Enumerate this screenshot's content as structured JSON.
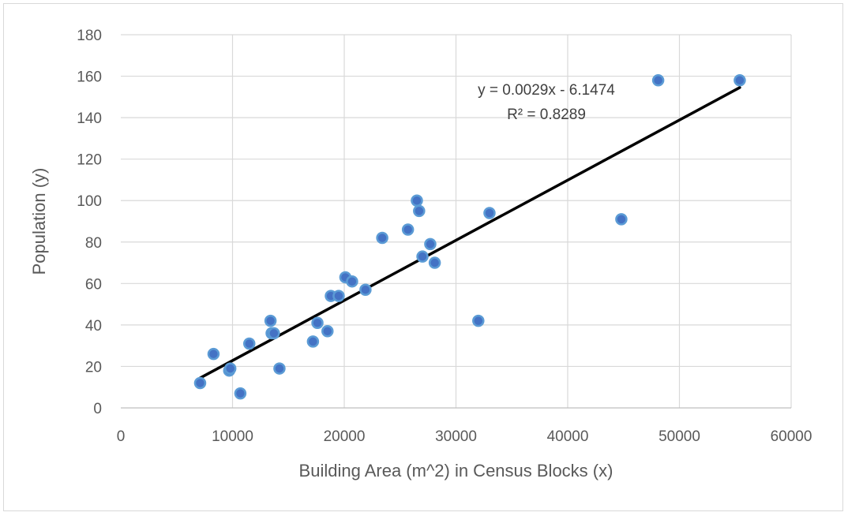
{
  "chart_data": {
    "type": "scatter",
    "title": "",
    "xlabel": "Building Area (m^2) in Census Blocks (x)",
    "ylabel": "Population (y)",
    "xlim": [
      0,
      60000
    ],
    "ylim": [
      0,
      180
    ],
    "x_ticks": [
      0,
      10000,
      20000,
      30000,
      40000,
      50000,
      60000
    ],
    "y_ticks": [
      0,
      20,
      40,
      60,
      80,
      100,
      120,
      140,
      160,
      180
    ],
    "x_tick_labels": [
      "0",
      "10000",
      "20000",
      "30000",
      "40000",
      "50000",
      "60000"
    ],
    "y_tick_labels": [
      "0",
      "20",
      "40",
      "60",
      "80",
      "100",
      "120",
      "140",
      "160",
      "180"
    ],
    "grid": true,
    "legend": "none",
    "series": [
      {
        "points": [
          {
            "x": 7100,
            "y": 12
          },
          {
            "x": 8300,
            "y": 26
          },
          {
            "x": 9700,
            "y": 18
          },
          {
            "x": 9800,
            "y": 19
          },
          {
            "x": 10700,
            "y": 7
          },
          {
            "x": 11500,
            "y": 31
          },
          {
            "x": 13400,
            "y": 42
          },
          {
            "x": 13500,
            "y": 36
          },
          {
            "x": 13700,
            "y": 36
          },
          {
            "x": 14200,
            "y": 19
          },
          {
            "x": 17200,
            "y": 32
          },
          {
            "x": 17600,
            "y": 41
          },
          {
            "x": 18500,
            "y": 37
          },
          {
            "x": 18800,
            "y": 54
          },
          {
            "x": 19500,
            "y": 54
          },
          {
            "x": 20100,
            "y": 63
          },
          {
            "x": 20700,
            "y": 61
          },
          {
            "x": 21900,
            "y": 57
          },
          {
            "x": 23400,
            "y": 82
          },
          {
            "x": 25700,
            "y": 86
          },
          {
            "x": 26500,
            "y": 100
          },
          {
            "x": 26700,
            "y": 95
          },
          {
            "x": 27000,
            "y": 73
          },
          {
            "x": 27700,
            "y": 79
          },
          {
            "x": 28100,
            "y": 70
          },
          {
            "x": 32000,
            "y": 42
          },
          {
            "x": 33000,
            "y": 94
          },
          {
            "x": 44800,
            "y": 91
          },
          {
            "x": 48100,
            "y": 158
          },
          {
            "x": 55400,
            "y": 158
          }
        ]
      }
    ],
    "trendline": {
      "type": "linear",
      "slope": 0.0029,
      "intercept": -6.1474,
      "x_start": 7100,
      "x_end": 55400,
      "equation_text": "y = 0.0029x - 6.1474",
      "r2_text": "R² = 0.8289"
    },
    "colors": {
      "point_fill": "#4472c4",
      "point_stroke": "#5b9bd5",
      "trendline": "#000000",
      "gridline": "#d9d9d9",
      "axis_text": "#595959"
    }
  }
}
